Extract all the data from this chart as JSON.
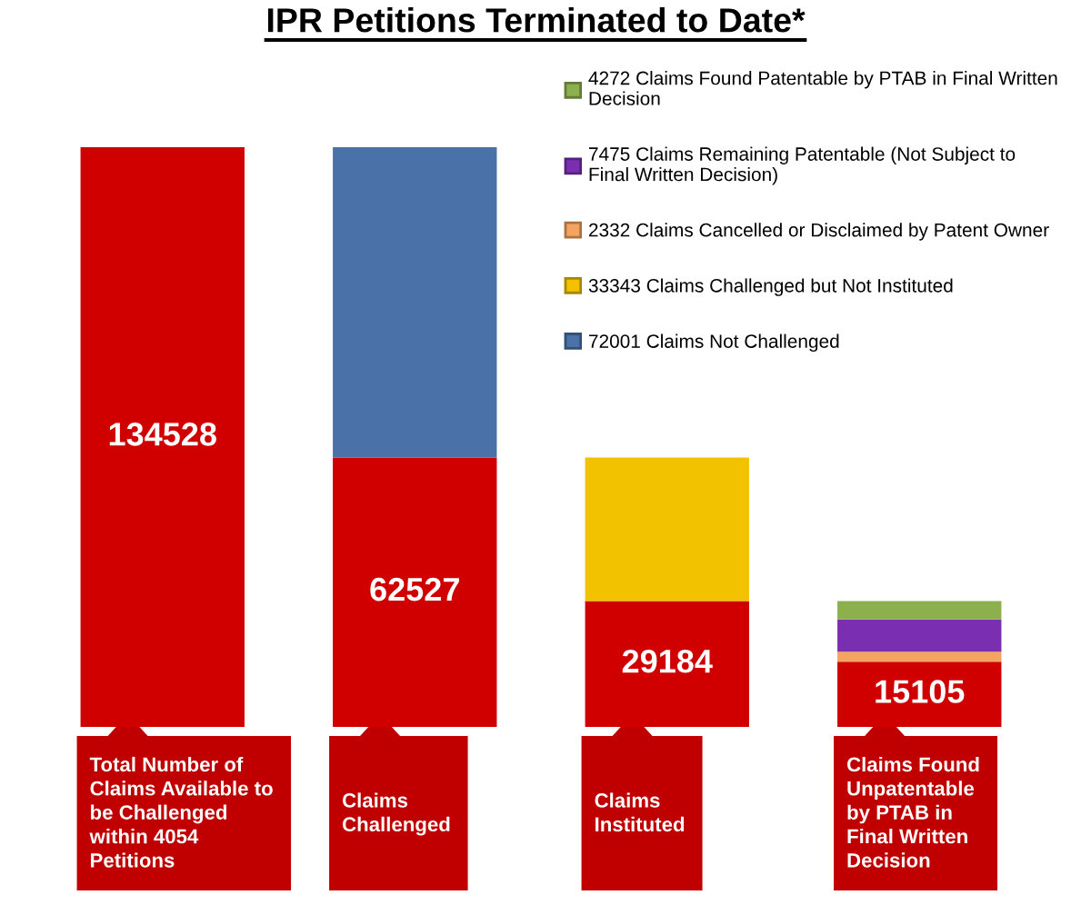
{
  "chart_data": {
    "type": "bar",
    "title": "IPR Petitions Terminated to Date*",
    "categories": [
      "Total Number of\nClaims Available to\nbe Challenged\nwithin 4054\nPetitions",
      "Claims\nChallenged",
      "Claims\nInstituted",
      "Claims Found\nUnpatentable\nby PTAB in\nFinal Written\nDecision"
    ],
    "stacked": true,
    "series": [
      {
        "color": "#d00000",
        "values": [
          134528,
          62527,
          29184,
          15105
        ],
        "value_labels": [
          "134528",
          "62527",
          "29184",
          "15105"
        ]
      },
      {
        "name": "72001 Claims Not Challenged",
        "color": "#4a72a8",
        "values": [
          null,
          72001,
          null,
          null
        ]
      },
      {
        "name": "33343 Claims Challenged but Not Instituted",
        "color": "#f2c200",
        "values": [
          null,
          null,
          33343,
          null
        ]
      },
      {
        "name": "2332 Claims Cancelled or Disclaimed by Patent Owner",
        "color": "#f4a460",
        "values": [
          null,
          null,
          null,
          2332
        ]
      },
      {
        "name": "7475 Claims Remaining Patentable (Not Subject to\nFinal Written Decision)",
        "color": "#7a2fb0",
        "values": [
          null,
          null,
          null,
          7475
        ]
      },
      {
        "name": "4272 Claims Found Patentable by PTAB in Final Written\nDecision",
        "color": "#8db04f",
        "values": [
          null,
          null,
          null,
          4272
        ]
      }
    ],
    "legend": "top right",
    "tick_labels": "x"
  }
}
